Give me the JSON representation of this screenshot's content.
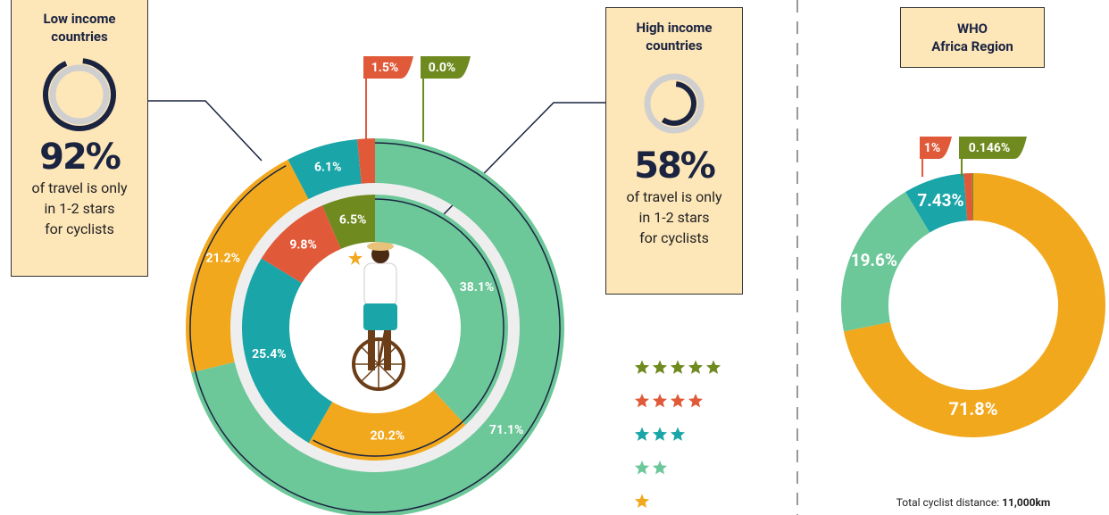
{
  "chart_data": [
    {
      "type": "donut",
      "title": "Low income\ncountries",
      "headline": {
        "value": 92,
        "label": "92%"
      },
      "note": "of travel is only\nin 1-2 stars\nfor cyclists",
      "values": [
        71.1,
        21.2,
        6.1,
        1.5,
        0.0
      ],
      "value_labels": [
        "71.1%",
        "21.2%",
        "6.1%",
        "1.5%",
        "0.0%"
      ],
      "colors": [
        "#6cc799",
        "#f2a81d",
        "#1aa5a8",
        "#e05a3a",
        "#6f8a1f"
      ]
    },
    {
      "type": "donut",
      "title": "High income\ncountries",
      "headline": {
        "value": 58,
        "label": "58%"
      },
      "note": "of travel is only\nin 1-2 stars\nfor cyclists",
      "values": [
        38.1,
        20.2,
        25.4,
        9.8,
        6.5
      ],
      "value_labels": [
        "38.1%",
        "20.2%",
        "25.4%",
        "9.8%",
        "6.5%"
      ],
      "colors": [
        "#6cc799",
        "#f2a81d",
        "#1aa5a8",
        "#e05a3a",
        "#6f8a1f"
      ]
    },
    {
      "type": "donut",
      "title": "WHO\nAfrica Region",
      "values": [
        71.8,
        19.6,
        7.43,
        1,
        0.146
      ],
      "value_labels": [
        "71.8%",
        "19.6%",
        "7.43%",
        "1%",
        "0.146%"
      ],
      "colors": [
        "#f2a81d",
        "#6cc799",
        "#1aa5a8",
        "#e05a3a",
        "#6f8a1f"
      ],
      "footnote": {
        "text": "Total cyclist distance:",
        "value": "11,000km"
      }
    }
  ],
  "legend": [
    {
      "stars": 5,
      "color": "#6f8a1f"
    },
    {
      "stars": 4,
      "color": "#e05a3a"
    },
    {
      "stars": 3,
      "color": "#1aa5a8"
    },
    {
      "stars": 2,
      "color": "#6cc799"
    },
    {
      "stars": 1,
      "color": "#f2a81d"
    }
  ]
}
